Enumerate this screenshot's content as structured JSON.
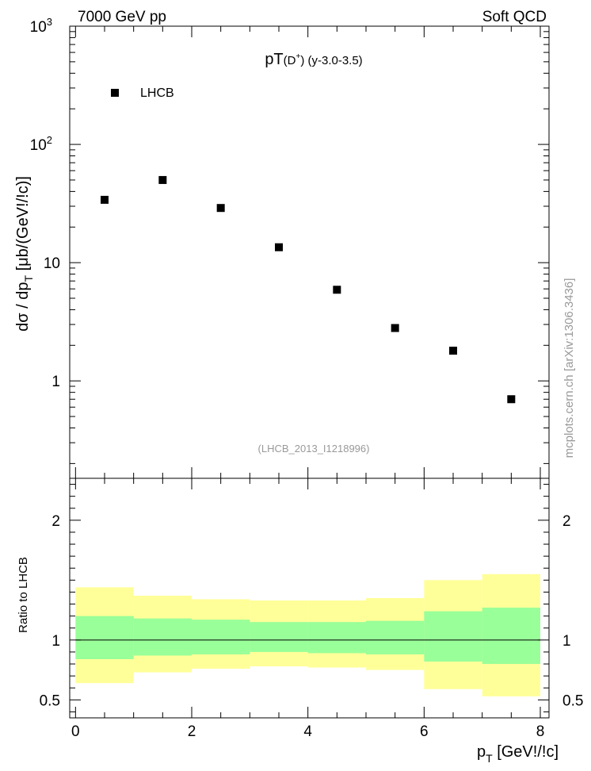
{
  "header": {
    "left": "7000 GeV pp",
    "right": "Soft QCD"
  },
  "title": {
    "main": "pT",
    "sub": "(D",
    "sup": "+",
    "tail": ") (y-3.0-3.5)"
  },
  "side_label": "mcplots.cern.ch [arXiv:1306.3436]",
  "analysis_label": "(LHCB_2013_I1218996)",
  "chart_data": [
    {
      "type": "scatter",
      "name": "main",
      "series": [
        {
          "name": "LHCB",
          "x": [
            0.5,
            1.5,
            2.5,
            3.5,
            4.5,
            5.5,
            6.5,
            7.5
          ],
          "values": [
            34,
            50,
            29,
            13.5,
            5.9,
            2.8,
            1.8,
            0.7
          ]
        }
      ],
      "yscale": "log",
      "ylim": [
        0.15,
        1000
      ],
      "xlim": [
        -0.1,
        8.15
      ],
      "ylabel": {
        "a": "dσ / dp",
        "sub": "T",
        "b": " [μb/(GeV!/!c)]"
      },
      "yticks": [
        {
          "v": 1,
          "label": "1"
        },
        {
          "v": 10,
          "label": "10"
        },
        {
          "v": 100,
          "label": "10",
          "exp": "2"
        },
        {
          "v": 1000,
          "label": "10",
          "exp": "3"
        }
      ],
      "legend": {
        "position": "top-left",
        "label": "LHCB"
      }
    },
    {
      "type": "area",
      "name": "ratio",
      "bins": [
        [
          0,
          1
        ],
        [
          1,
          2
        ],
        [
          2,
          3
        ],
        [
          3,
          4
        ],
        [
          4,
          5
        ],
        [
          5,
          6
        ],
        [
          6,
          7
        ],
        [
          7,
          8
        ]
      ],
      "band_total": [
        [
          0.64,
          1.44
        ],
        [
          0.73,
          1.37
        ],
        [
          0.76,
          1.34
        ],
        [
          0.78,
          1.33
        ],
        [
          0.77,
          1.33
        ],
        [
          0.75,
          1.35
        ],
        [
          0.59,
          1.5
        ],
        [
          0.53,
          1.55
        ]
      ],
      "band_stat": [
        [
          0.84,
          1.2
        ],
        [
          0.87,
          1.18
        ],
        [
          0.88,
          1.17
        ],
        [
          0.9,
          1.15
        ],
        [
          0.89,
          1.15
        ],
        [
          0.88,
          1.16
        ],
        [
          0.82,
          1.24
        ],
        [
          0.8,
          1.27
        ]
      ],
      "ylim": [
        0.35,
        2.35
      ],
      "xlim": [
        -0.1,
        8.15
      ],
      "ylabel": "Ratio to LHCB",
      "yticks": [
        {
          "v": 0.5,
          "label": "0.5"
        },
        {
          "v": 1,
          "label": "1"
        },
        {
          "v": 2,
          "label": "2"
        }
      ],
      "xticks": [
        {
          "v": 0,
          "label": "0"
        },
        {
          "v": 2,
          "label": "2"
        },
        {
          "v": 4,
          "label": "4"
        },
        {
          "v": 6,
          "label": "6"
        },
        {
          "v": 8,
          "label": "8"
        }
      ],
      "xlabel": {
        "a": "p",
        "sub": "T",
        "b": " [GeV!/!c]"
      },
      "colors": {
        "total": "#ffff99",
        "stat": "#99ff99",
        "line": "#000000"
      }
    }
  ]
}
